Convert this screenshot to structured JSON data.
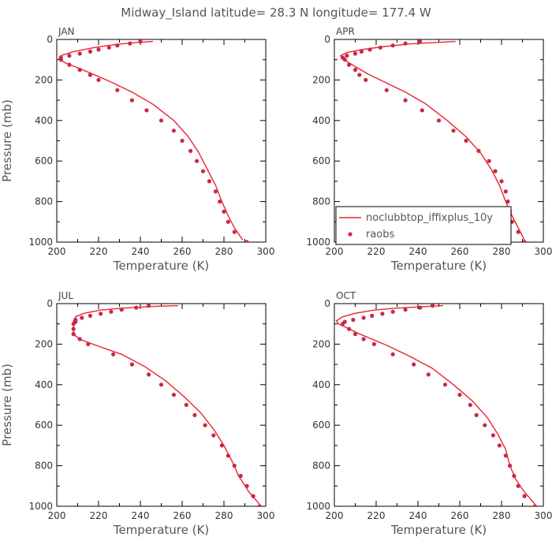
{
  "title": "Midway_Island  latitude= 28.3 N longitude= 177.4 W",
  "colors": {
    "model": "#e8262c",
    "obs": "#c8284a"
  },
  "legend": {
    "model_label": "noclubbtop_iffixplus_10y",
    "obs_label": "raobs"
  },
  "chart_data": [
    {
      "type": "line",
      "panel": "JAN",
      "xlabel": "Temperature (K)",
      "ylabel": "Pressure (mb)",
      "xlim": [
        200,
        300
      ],
      "ylim": [
        1000,
        0
      ],
      "xticks": [
        200,
        220,
        240,
        260,
        280,
        300
      ],
      "yticks": [
        0,
        200,
        400,
        600,
        800,
        1000
      ],
      "series": [
        {
          "name": "noclubbtop_iffixplus_10y",
          "kind": "line",
          "points": [
            [
              246,
              10
            ],
            [
              238,
              15
            ],
            [
              228,
              25
            ],
            [
              218,
              40
            ],
            [
              208,
              60
            ],
            [
              202,
              80
            ],
            [
              201,
              95
            ],
            [
              204,
              115
            ],
            [
              210,
              140
            ],
            [
              217,
              170
            ],
            [
              226,
              210
            ],
            [
              236,
              260
            ],
            [
              246,
              320
            ],
            [
              256,
              400
            ],
            [
              263,
              480
            ],
            [
              268,
              560
            ],
            [
              272,
              640
            ],
            [
              276,
              720
            ],
            [
              279,
              800
            ],
            [
              282,
              870
            ],
            [
              285,
              930
            ],
            [
              289,
              990
            ]
          ]
        },
        {
          "name": "raobs",
          "kind": "scatter",
          "points": [
            [
              240,
              10
            ],
            [
              235,
              20
            ],
            [
              229,
              30
            ],
            [
              225,
              40
            ],
            [
              220,
              50
            ],
            [
              216,
              60
            ],
            [
              211,
              70
            ],
            [
              206,
              80
            ],
            [
              202,
              90
            ],
            [
              202,
              100
            ],
            [
              206,
              125
            ],
            [
              211,
              150
            ],
            [
              216,
              175
            ],
            [
              220,
              200
            ],
            [
              229,
              250
            ],
            [
              236,
              300
            ],
            [
              243,
              350
            ],
            [
              250,
              400
            ],
            [
              256,
              450
            ],
            [
              260,
              500
            ],
            [
              264,
              550
            ],
            [
              267,
              600
            ],
            [
              270,
              650
            ],
            [
              273,
              700
            ],
            [
              276,
              750
            ],
            [
              278,
              800
            ],
            [
              280,
              850
            ],
            [
              282,
              900
            ],
            [
              285,
              950
            ],
            [
              291,
              1000
            ]
          ]
        }
      ]
    },
    {
      "type": "line",
      "panel": "APR",
      "xlabel": "Temperature (K)",
      "ylabel": "",
      "xlim": [
        200,
        300
      ],
      "ylim": [
        1000,
        0
      ],
      "xticks": [
        200,
        220,
        240,
        260,
        280,
        300
      ],
      "yticks": [
        0,
        200,
        400,
        600,
        800,
        1000
      ],
      "legend_position": "lower-right",
      "series": [
        {
          "name": "noclubbtop_iffixplus_10y",
          "kind": "line",
          "points": [
            [
              258,
              10
            ],
            [
              248,
              15
            ],
            [
              236,
              22
            ],
            [
              224,
              35
            ],
            [
              213,
              50
            ],
            [
              206,
              65
            ],
            [
              203,
              80
            ],
            [
              204,
              95
            ],
            [
              207,
              115
            ],
            [
              211,
              140
            ],
            [
              216,
              170
            ],
            [
              224,
              210
            ],
            [
              234,
              260
            ],
            [
              244,
              320
            ],
            [
              254,
              400
            ],
            [
              263,
              480
            ],
            [
              270,
              560
            ],
            [
              275,
              640
            ],
            [
              279,
              720
            ],
            [
              282,
              800
            ],
            [
              285,
              870
            ],
            [
              288,
              930
            ],
            [
              291,
              990
            ]
          ]
        },
        {
          "name": "raobs",
          "kind": "scatter",
          "points": [
            [
              241,
              10
            ],
            [
              234,
              20
            ],
            [
              228,
              30
            ],
            [
              222,
              40
            ],
            [
              217,
              50
            ],
            [
              213,
              60
            ],
            [
              210,
              70
            ],
            [
              206,
              80
            ],
            [
              204,
              90
            ],
            [
              205,
              100
            ],
            [
              207,
              125
            ],
            [
              210,
              150
            ],
            [
              212,
              175
            ],
            [
              215,
              200
            ],
            [
              225,
              250
            ],
            [
              234,
              300
            ],
            [
              242,
              350
            ],
            [
              250,
              400
            ],
            [
              257,
              450
            ],
            [
              263,
              500
            ],
            [
              269,
              550
            ],
            [
              274,
              600
            ],
            [
              277,
              650
            ],
            [
              280,
              700
            ],
            [
              282,
              750
            ],
            [
              283,
              800
            ],
            [
              284,
              850
            ],
            [
              285,
              900
            ],
            [
              288,
              950
            ],
            [
              291,
              1000
            ]
          ]
        }
      ]
    },
    {
      "type": "line",
      "panel": "JUL",
      "xlabel": "Temperature (K)",
      "ylabel": "Pressure (mb)",
      "xlim": [
        200,
        300
      ],
      "ylim": [
        1000,
        0
      ],
      "xticks": [
        200,
        220,
        240,
        260,
        280,
        300
      ],
      "yticks": [
        0,
        200,
        400,
        600,
        800,
        1000
      ],
      "series": [
        {
          "name": "noclubbtop_iffixplus_10y",
          "kind": "line",
          "points": [
            [
              258,
              10
            ],
            [
              246,
              14
            ],
            [
              232,
              22
            ],
            [
              221,
              32
            ],
            [
              213,
              48
            ],
            [
              209,
              65
            ],
            [
              208,
              85
            ],
            [
              208,
              110
            ],
            [
              208,
              140
            ],
            [
              209,
              160
            ],
            [
              212,
              180
            ],
            [
              220,
              210
            ],
            [
              231,
              250
            ],
            [
              242,
              310
            ],
            [
              252,
              380
            ],
            [
              261,
              460
            ],
            [
              269,
              540
            ],
            [
              275,
              620
            ],
            [
              280,
              700
            ],
            [
              284,
              780
            ],
            [
              287,
              850
            ],
            [
              292,
              930
            ],
            [
              297,
              990
            ]
          ]
        },
        {
          "name": "raobs",
          "kind": "scatter",
          "points": [
            [
              244,
              10
            ],
            [
              238,
              20
            ],
            [
              231,
              30
            ],
            [
              226,
              40
            ],
            [
              221,
              50
            ],
            [
              216,
              60
            ],
            [
              212,
              70
            ],
            [
              209,
              80
            ],
            [
              209,
              90
            ],
            [
              208,
              100
            ],
            [
              208,
              125
            ],
            [
              208,
              150
            ],
            [
              211,
              175
            ],
            [
              215,
              200
            ],
            [
              227,
              250
            ],
            [
              236,
              300
            ],
            [
              244,
              350
            ],
            [
              250,
              400
            ],
            [
              256,
              450
            ],
            [
              262,
              500
            ],
            [
              266,
              550
            ],
            [
              271,
              600
            ],
            [
              275,
              650
            ],
            [
              279,
              700
            ],
            [
              282,
              750
            ],
            [
              285,
              800
            ],
            [
              288,
              850
            ],
            [
              291,
              900
            ],
            [
              294,
              950
            ],
            [
              297,
              1000
            ]
          ]
        }
      ]
    },
    {
      "type": "line",
      "panel": "OCT",
      "xlabel": "Temperature (K)",
      "ylabel": "",
      "xlim": [
        200,
        300
      ],
      "ylim": [
        1000,
        0
      ],
      "xticks": [
        200,
        220,
        240,
        260,
        280,
        300
      ],
      "yticks": [
        0,
        200,
        400,
        600,
        800,
        1000
      ],
      "series": [
        {
          "name": "noclubbtop_iffixplus_10y",
          "kind": "line",
          "points": [
            [
              252,
              10
            ],
            [
              242,
              15
            ],
            [
              230,
              22
            ],
            [
              219,
              32
            ],
            [
              210,
              48
            ],
            [
              204,
              65
            ],
            [
              201,
              85
            ],
            [
              202,
              100
            ],
            [
              206,
              120
            ],
            [
              211,
              145
            ],
            [
              218,
              175
            ],
            [
              226,
              210
            ],
            [
              236,
              260
            ],
            [
              247,
              320
            ],
            [
              257,
              400
            ],
            [
              266,
              480
            ],
            [
              273,
              560
            ],
            [
              278,
              640
            ],
            [
              282,
              720
            ],
            [
              284,
              800
            ],
            [
              287,
              870
            ],
            [
              291,
              930
            ],
            [
              296,
              990
            ]
          ]
        },
        {
          "name": "raobs",
          "kind": "scatter",
          "points": [
            [
              247,
              10
            ],
            [
              241,
              20
            ],
            [
              234,
              30
            ],
            [
              228,
              40
            ],
            [
              223,
              50
            ],
            [
              218,
              60
            ],
            [
              214,
              70
            ],
            [
              209,
              80
            ],
            [
              205,
              90
            ],
            [
              204,
              100
            ],
            [
              207,
              125
            ],
            [
              210,
              150
            ],
            [
              214,
              175
            ],
            [
              219,
              200
            ],
            [
              228,
              250
            ],
            [
              238,
              300
            ],
            [
              245,
              350
            ],
            [
              253,
              400
            ],
            [
              260,
              450
            ],
            [
              265,
              500
            ],
            [
              268,
              550
            ],
            [
              272,
              600
            ],
            [
              276,
              650
            ],
            [
              279,
              700
            ],
            [
              282,
              750
            ],
            [
              284,
              800
            ],
            [
              286,
              850
            ],
            [
              288,
              900
            ],
            [
              291,
              950
            ],
            [
              296,
              1000
            ]
          ]
        }
      ]
    }
  ]
}
